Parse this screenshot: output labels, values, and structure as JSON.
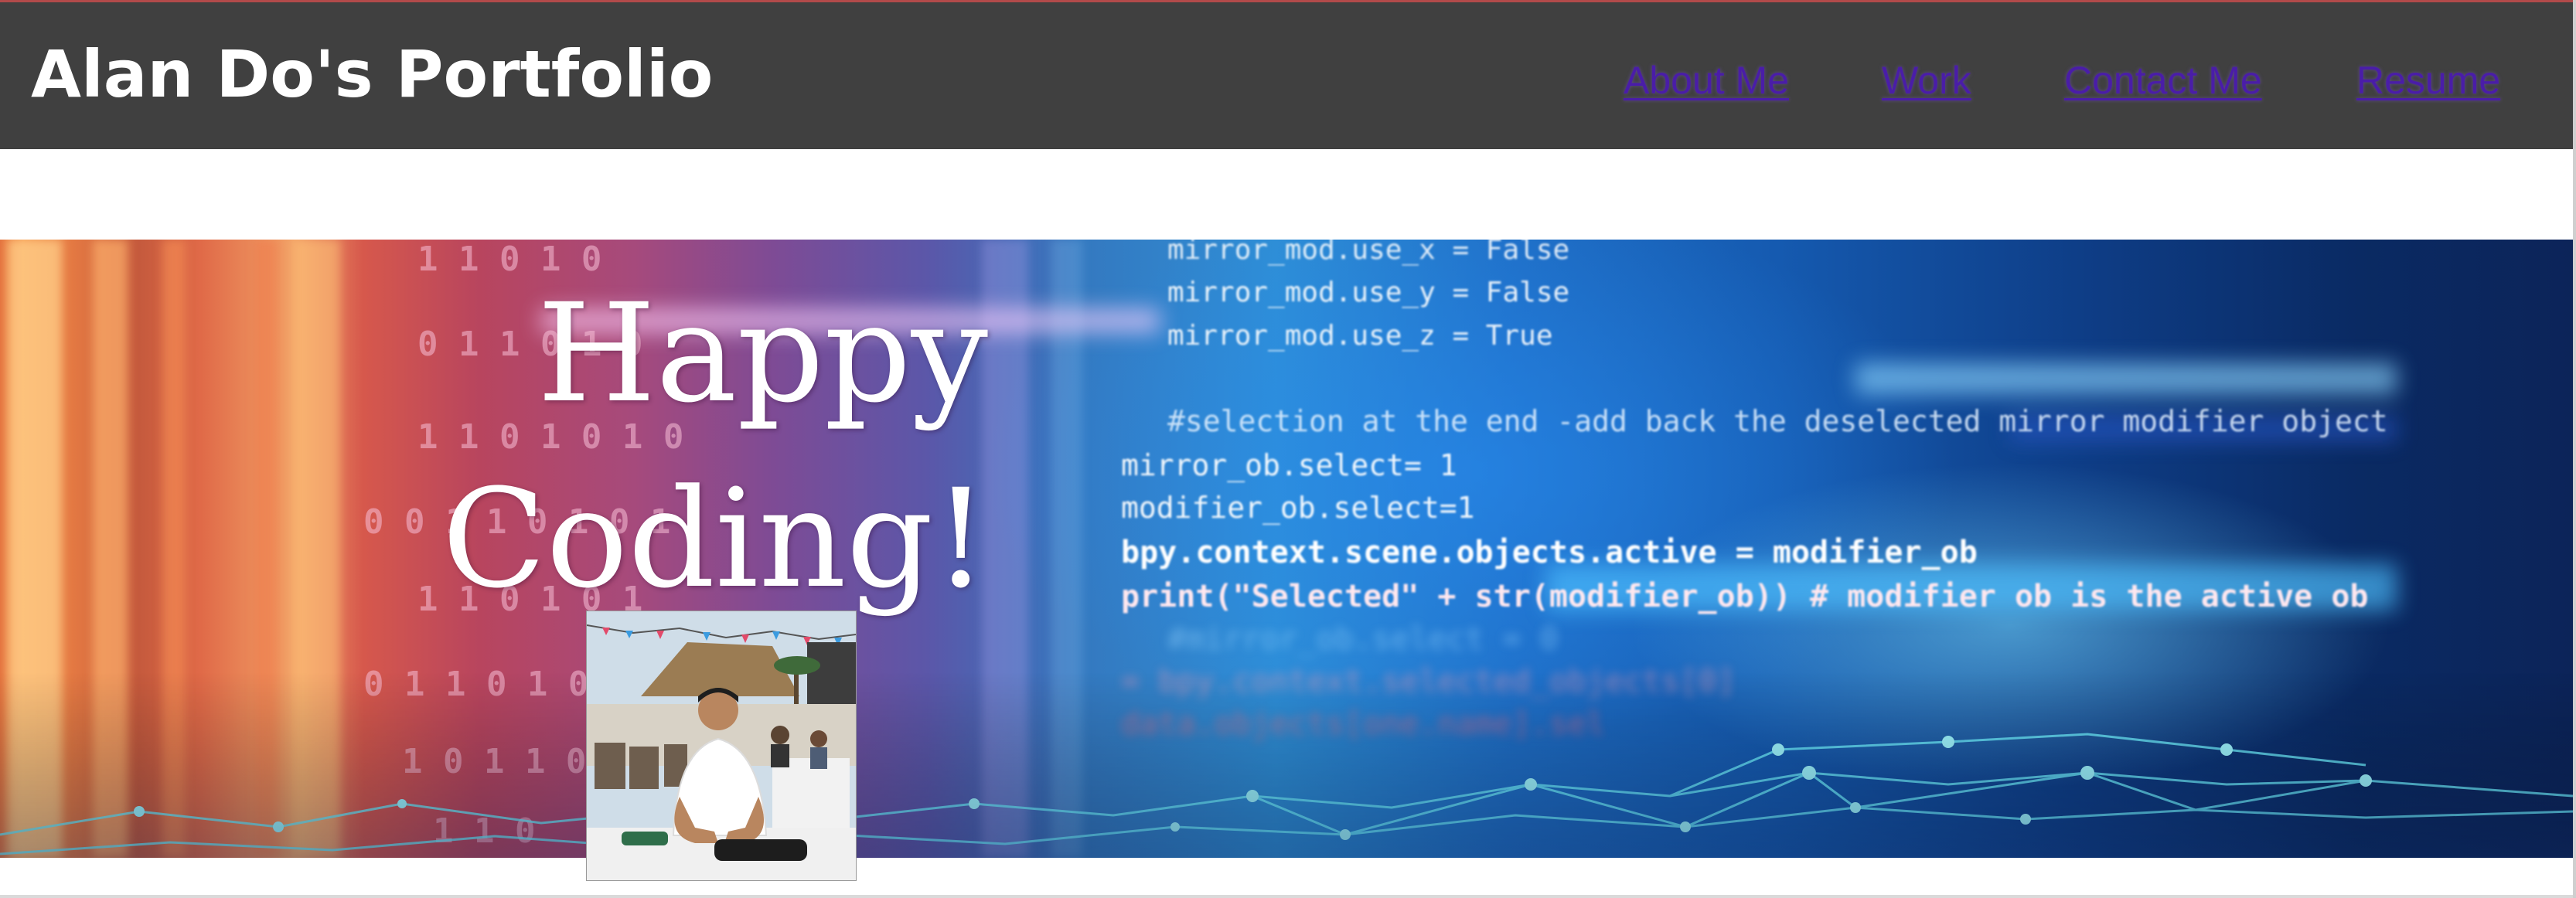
{
  "header": {
    "title": "Alan Do's Portfolio",
    "background_color": "#404040",
    "nav": [
      {
        "label": "About Me"
      },
      {
        "label": "Work"
      },
      {
        "label": "Contact Me"
      },
      {
        "label": "Resume"
      }
    ],
    "link_color": "#4a1da8"
  },
  "hero": {
    "title_line1": "Happy",
    "title_line2": "Coding!",
    "code_lines": [
      "mirror_mod.use_x = False",
      "mirror_mod.use_y = False",
      "mirror_mod.use_z = True",
      "#selection at the end -add back the deselected mirror modifier object",
      "mirror_ob.select= 1",
      "modifier_ob.select=1",
      "bpy.context.scene.objects.active = modifier_ob",
      "print(\"Selected\" + str(modifier_ob)) # modifier ob is the active ob",
      "#mirror_ob.select = 0",
      "= bpy.context.selected_objects[0]",
      "data.objects[one.name].sel"
    ],
    "binary_rows": [
      "1 1 0 1 0",
      "0 1 1 0 1 0",
      "1 1 0 1 0 1 0",
      "0 0 1 1 0 1 0 1",
      "1 1 0 1 0 1",
      "0 1 1 0 1 0",
      "1 0 1 1 0",
      "1 1 0"
    ]
  },
  "profile": {
    "photo_icon": "profile-photo"
  }
}
